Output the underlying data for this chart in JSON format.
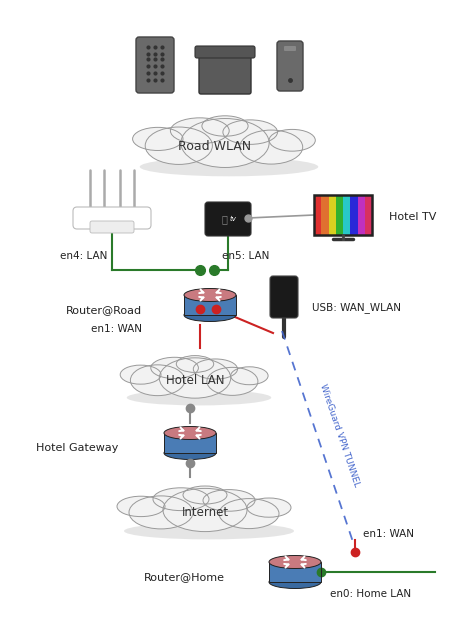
{
  "bg_color": "#ffffff",
  "cloud_color": "#f2f2f2",
  "cloud_edge": "#999999",
  "router_top_color": "#c97a80",
  "router_bottom_color": "#4a7cb5",
  "router_bottom_dark": "#3a6aa0",
  "green_dot": "#2a7a2a",
  "red_dot": "#cc2222",
  "grey_dot": "#888888",
  "green_line": "#2a7a2a",
  "red_line": "#cc2222",
  "grey_line": "#888888",
  "vpn_line": "#4466cc",
  "device_color": "#666666",
  "road_wlan_label": "Road WLAN",
  "hotel_lan_label": "Hotel LAN",
  "internet_label": "Internet",
  "hotel_tv_label": "Hotel TV",
  "router_road_label": "Router@Road",
  "hotel_gw_label": "Hotel Gateway",
  "router_home_label": "Router@Home",
  "en4_label": "en4: LAN",
  "en5_label": "en5: LAN",
  "en1_wan_label": "en1: WAN",
  "en1_wan_home_label": "en1: WAN",
  "en0_label": "en0: Home LAN",
  "usb_label": "USB: WAN_WLAN",
  "vpn_label": "WireGuard VPN TUNNEL"
}
